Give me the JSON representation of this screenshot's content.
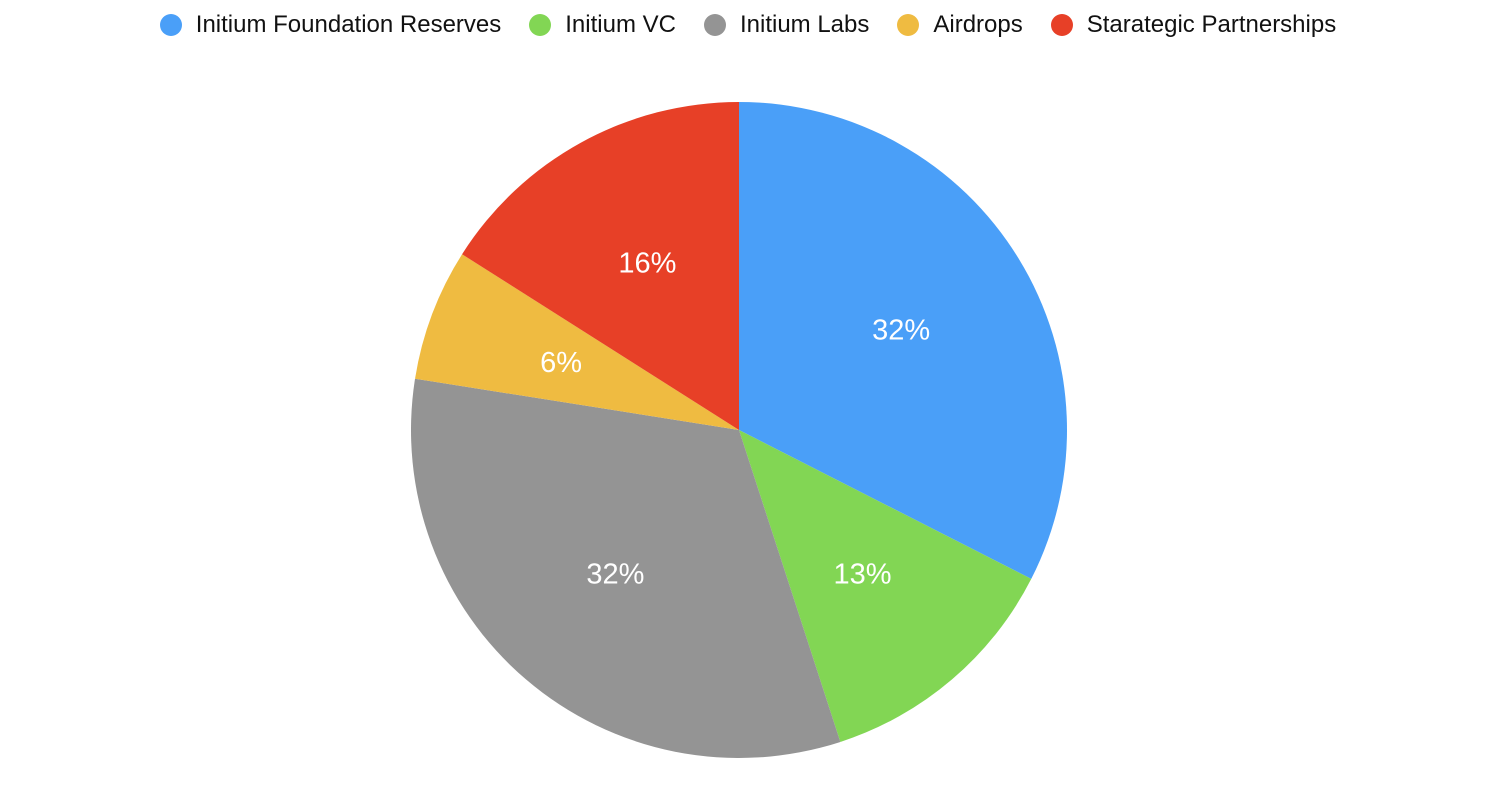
{
  "chart_data": {
    "type": "pie",
    "title": "",
    "legend_position": "top",
    "categories": [
      "Initium Foundation Reserves",
      "Initium VC",
      "Initium Labs",
      "Airdrops",
      "Starategic Partnerships"
    ],
    "values": [
      32.5,
      12.5,
      32.5,
      6.5,
      16
    ],
    "labels": [
      "32%",
      "13%",
      "32%",
      "6%",
      "16%"
    ],
    "colors": [
      "#4a9ff8",
      "#82d654",
      "#949494",
      "#efbb41",
      "#e74027"
    ]
  }
}
